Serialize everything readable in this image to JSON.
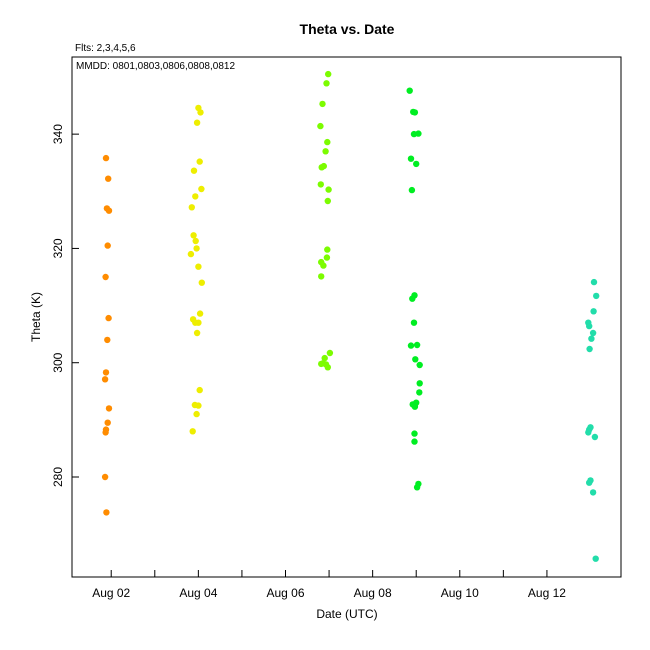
{
  "chart_data": {
    "type": "scatter",
    "title": "Theta  vs. Date",
    "annotation_flts": "Flts: 2,3,4,5,6",
    "annotation_mmdd": "MMDD: 0801,0803,0806,0808,0812",
    "xlabel": "Date (UTC)",
    "ylabel": "Theta (K)",
    "x_ticks": [
      {
        "day": 2,
        "label": "Aug 02"
      },
      {
        "day": 4,
        "label": "Aug 04"
      },
      {
        "day": 6,
        "label": "Aug 06"
      },
      {
        "day": 8,
        "label": "Aug 08"
      },
      {
        "day": 10,
        "label": "Aug 10"
      },
      {
        "day": 12,
        "label": "Aug 12"
      }
    ],
    "x_minor_ticks": [
      3,
      5,
      7,
      9,
      11
    ],
    "xlim": [
      1.1,
      13.7
    ],
    "y_ticks": [
      280,
      300,
      320,
      340
    ],
    "ylim": [
      262.5,
      353.5
    ],
    "grid": false,
    "series": [
      {
        "color": "#ff8c00",
        "points": [
          [
            1.88,
            335.8
          ],
          [
            1.93,
            332.2
          ],
          [
            1.9,
            327.0
          ],
          [
            1.95,
            326.6
          ],
          [
            1.92,
            320.5
          ],
          [
            1.87,
            315.0
          ],
          [
            1.94,
            307.8
          ],
          [
            1.91,
            304.0
          ],
          [
            1.88,
            298.3
          ],
          [
            1.86,
            297.1
          ],
          [
            1.95,
            292.0
          ],
          [
            1.92,
            289.5
          ],
          [
            1.88,
            288.3
          ],
          [
            1.87,
            287.8
          ],
          [
            1.86,
            280.0
          ],
          [
            1.89,
            273.8
          ]
        ]
      },
      {
        "color": "#eeee00",
        "points": [
          [
            4.0,
            344.6
          ],
          [
            4.05,
            343.8
          ],
          [
            3.97,
            342.0
          ],
          [
            4.03,
            335.2
          ],
          [
            3.9,
            333.6
          ],
          [
            4.07,
            330.4
          ],
          [
            3.93,
            329.1
          ],
          [
            3.85,
            327.2
          ],
          [
            3.89,
            322.3
          ],
          [
            3.94,
            321.3
          ],
          [
            3.96,
            320.0
          ],
          [
            3.83,
            319.0
          ],
          [
            4.0,
            316.8
          ],
          [
            4.08,
            314.0
          ],
          [
            4.04,
            308.6
          ],
          [
            3.88,
            307.6
          ],
          [
            3.93,
            307.0
          ],
          [
            4.0,
            307.0
          ],
          [
            3.97,
            305.2
          ],
          [
            4.03,
            295.2
          ],
          [
            3.92,
            292.6
          ],
          [
            4.0,
            292.5
          ],
          [
            3.96,
            291.0
          ],
          [
            3.87,
            288.0
          ]
        ]
      },
      {
        "color": "#7cfc00",
        "points": [
          [
            6.98,
            350.5
          ],
          [
            6.94,
            348.9
          ],
          [
            6.85,
            345.3
          ],
          [
            6.8,
            341.4
          ],
          [
            6.96,
            338.6
          ],
          [
            6.92,
            337.0
          ],
          [
            6.88,
            334.4
          ],
          [
            6.83,
            334.2
          ],
          [
            6.81,
            331.2
          ],
          [
            6.99,
            330.3
          ],
          [
            6.97,
            328.3
          ],
          [
            6.96,
            319.8
          ],
          [
            6.95,
            318.4
          ],
          [
            6.82,
            317.6
          ],
          [
            6.87,
            317.0
          ],
          [
            6.82,
            315.1
          ],
          [
            7.02,
            301.7
          ],
          [
            6.9,
            300.8
          ],
          [
            6.82,
            299.8
          ],
          [
            6.86,
            299.9
          ],
          [
            6.93,
            299.7
          ],
          [
            6.97,
            299.2
          ]
        ]
      },
      {
        "color": "#00ee22",
        "points": [
          [
            8.85,
            347.6
          ],
          [
            8.93,
            343.9
          ],
          [
            8.97,
            343.8
          ],
          [
            8.95,
            340.0
          ],
          [
            9.05,
            340.1
          ],
          [
            8.88,
            335.7
          ],
          [
            9.0,
            334.8
          ],
          [
            8.9,
            330.2
          ],
          [
            8.96,
            311.8
          ],
          [
            8.91,
            311.2
          ],
          [
            8.95,
            307.0
          ],
          [
            8.88,
            303.0
          ],
          [
            9.02,
            303.1
          ],
          [
            8.98,
            300.6
          ],
          [
            9.08,
            299.6
          ],
          [
            9.08,
            296.4
          ],
          [
            9.07,
            294.8
          ],
          [
            9.0,
            293.0
          ],
          [
            8.92,
            292.7
          ],
          [
            8.97,
            292.3
          ],
          [
            8.96,
            287.6
          ],
          [
            8.96,
            286.2
          ],
          [
            9.05,
            278.8
          ],
          [
            9.02,
            278.2
          ]
        ]
      },
      {
        "color": "#22ddaa",
        "points": [
          [
            13.08,
            314.1
          ],
          [
            13.13,
            311.7
          ],
          [
            13.07,
            309.0
          ],
          [
            12.95,
            307.0
          ],
          [
            12.97,
            306.4
          ],
          [
            13.06,
            305.2
          ],
          [
            13.02,
            304.2
          ],
          [
            12.98,
            302.4
          ],
          [
            13.0,
            288.7
          ],
          [
            12.97,
            288.3
          ],
          [
            12.95,
            287.8
          ],
          [
            13.1,
            287.0
          ],
          [
            13.0,
            279.4
          ],
          [
            12.97,
            279.0
          ],
          [
            13.06,
            277.3
          ],
          [
            13.12,
            265.7
          ]
        ]
      }
    ]
  }
}
